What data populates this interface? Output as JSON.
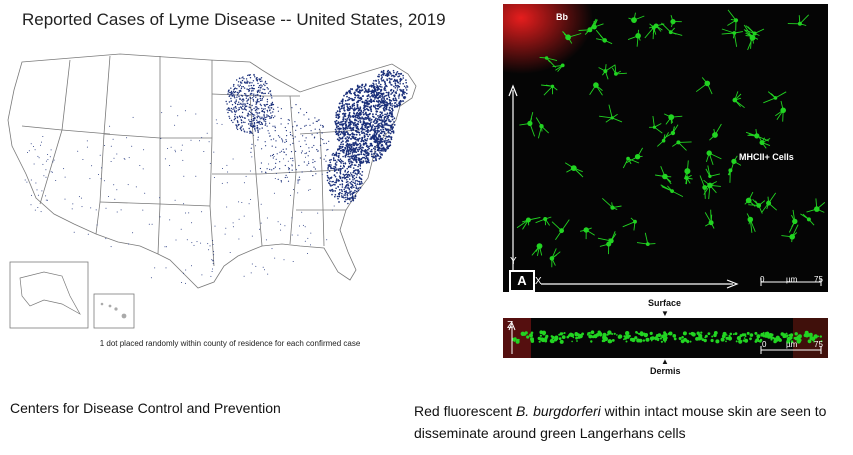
{
  "map": {
    "title": "Reported Cases of Lyme Disease -- United States, 2019",
    "caption": "1 dot placed randomly within county of residence for each confirmed case",
    "dot_color": "#1a2f7a"
  },
  "credit": "Centers for Disease Control and Prevention",
  "microscopy": {
    "label_bb": "Bb",
    "label_cells": "MHCII+ Cells",
    "panel_label": "A",
    "axis_x": "X",
    "axis_y": "Y",
    "axis_z": "Z",
    "scale_start": "0",
    "scale_unit": "µm",
    "scale_end": "75",
    "surface_label": "Surface",
    "dermis_label": "Dermis",
    "colors": {
      "cells": "#22d422",
      "bacteria": "#d42020",
      "background": "#050505"
    }
  },
  "caption": {
    "prefix": "Red fluorescent",
    "species": "B. burgdorferi",
    "suffix": "within intact mouse skin are seen to disseminate around green Langerhans cells"
  }
}
